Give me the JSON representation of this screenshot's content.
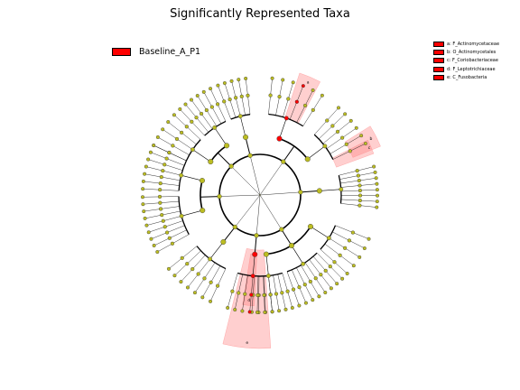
{
  "title": "Significantly Represented Taxa",
  "legend": {
    "class_label": "Baseline_A_P1",
    "class_color": "#ff0000"
  },
  "clades": [
    {
      "key": "a",
      "label": "a: F_Actinomycetaceae"
    },
    {
      "key": "b",
      "label": "b: O_Actinomycetales"
    },
    {
      "key": "c",
      "label": "c: F_Coriobacteriaceae"
    },
    {
      "key": "d",
      "label": "d: F_Leptotrichiaceae"
    },
    {
      "key": "e",
      "label": "e: C_Fusobacteria"
    }
  ],
  "colors": {
    "node_default": "#bcbd22",
    "node_enriched": "#ff0000",
    "highlight": "#ff8080"
  }
}
